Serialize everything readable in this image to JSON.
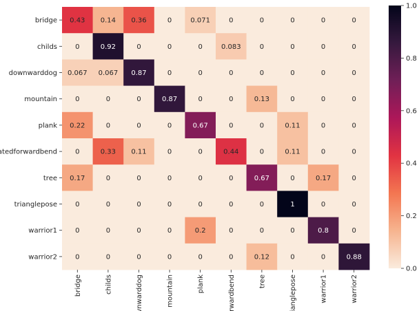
{
  "chart_data": {
    "type": "heatmap",
    "title": "",
    "xlabel": "",
    "ylabel": "",
    "rows": [
      "bridge",
      "childs",
      "downwarddog",
      "mountain",
      "plank",
      "atedforwardbend",
      "tree",
      "trianglepose",
      "warrior1",
      "warrior2"
    ],
    "columns": [
      "bridge",
      "childs",
      "vnwarddog",
      "mountain",
      "plank",
      "rwardbend",
      "tree",
      "rianglepose",
      "warrior1",
      "warrior2"
    ],
    "values": [
      [
        0.43,
        0.14,
        0.36,
        0,
        0.071,
        0,
        0,
        0,
        0,
        0
      ],
      [
        0,
        0.92,
        0,
        0,
        0,
        0.083,
        0,
        0,
        0,
        0
      ],
      [
        0.067,
        0.067,
        0.87,
        0,
        0,
        0,
        0,
        0,
        0,
        0
      ],
      [
        0,
        0,
        0,
        0.87,
        0,
        0,
        0.13,
        0,
        0,
        0
      ],
      [
        0.22,
        0,
        0,
        0,
        0.67,
        0,
        0,
        0.11,
        0,
        0
      ],
      [
        0,
        0.33,
        0.11,
        0,
        0,
        0.44,
        0,
        0.11,
        0,
        0
      ],
      [
        0.17,
        0,
        0,
        0,
        0,
        0,
        0.67,
        0,
        0.17,
        0
      ],
      [
        0,
        0,
        0,
        0,
        0,
        0,
        0,
        1,
        0,
        0
      ],
      [
        0,
        0,
        0,
        0,
        0.2,
        0,
        0,
        0,
        0.8,
        0
      ],
      [
        0,
        0,
        0,
        0,
        0,
        0,
        0.12,
        0,
        0,
        0.88
      ]
    ],
    "cell_labels": [
      [
        "0.43",
        "0.14",
        "0.36",
        "0",
        "0.071",
        "0",
        "0",
        "0",
        "0",
        "0"
      ],
      [
        "0",
        "0.92",
        "0",
        "0",
        "0",
        "0.083",
        "0",
        "0",
        "0",
        "0"
      ],
      [
        "0.067",
        "0.067",
        "0.87",
        "0",
        "0",
        "0",
        "0",
        "0",
        "0",
        "0"
      ],
      [
        "0",
        "0",
        "0",
        "0.87",
        "0",
        "0",
        "0.13",
        "0",
        "0",
        "0"
      ],
      [
        "0.22",
        "0",
        "0",
        "0",
        "0.67",
        "0",
        "0",
        "0.11",
        "0",
        "0"
      ],
      [
        "0",
        "0.33",
        "0.11",
        "0",
        "0",
        "0.44",
        "0",
        "0.11",
        "0",
        "0"
      ],
      [
        "0.17",
        "0",
        "0",
        "0",
        "0",
        "0",
        "0.67",
        "0",
        "0.17",
        "0"
      ],
      [
        "0",
        "0",
        "0",
        "0",
        "0",
        "0",
        "0",
        "1",
        "0",
        "0"
      ],
      [
        "0",
        "0",
        "0",
        "0",
        "0.2",
        "0",
        "0",
        "0",
        "0.8",
        "0"
      ],
      [
        "0",
        "0",
        "0",
        "0",
        "0",
        "0",
        "0.12",
        "0",
        "0",
        "0.88"
      ]
    ],
    "colorbar": {
      "range": [
        0,
        1
      ],
      "ticks": [
        "0.0",
        "0.2",
        "0.4",
        "0.6",
        "0.8",
        "1.0"
      ],
      "colormap": "rocket_r",
      "colors": [
        "#faebdd",
        "#f6b48f",
        "#f37651",
        "#e13342",
        "#ad1759",
        "#701f57",
        "#36193e",
        "#03051a"
      ]
    },
    "grid": false,
    "legend": "colorbar-right"
  }
}
